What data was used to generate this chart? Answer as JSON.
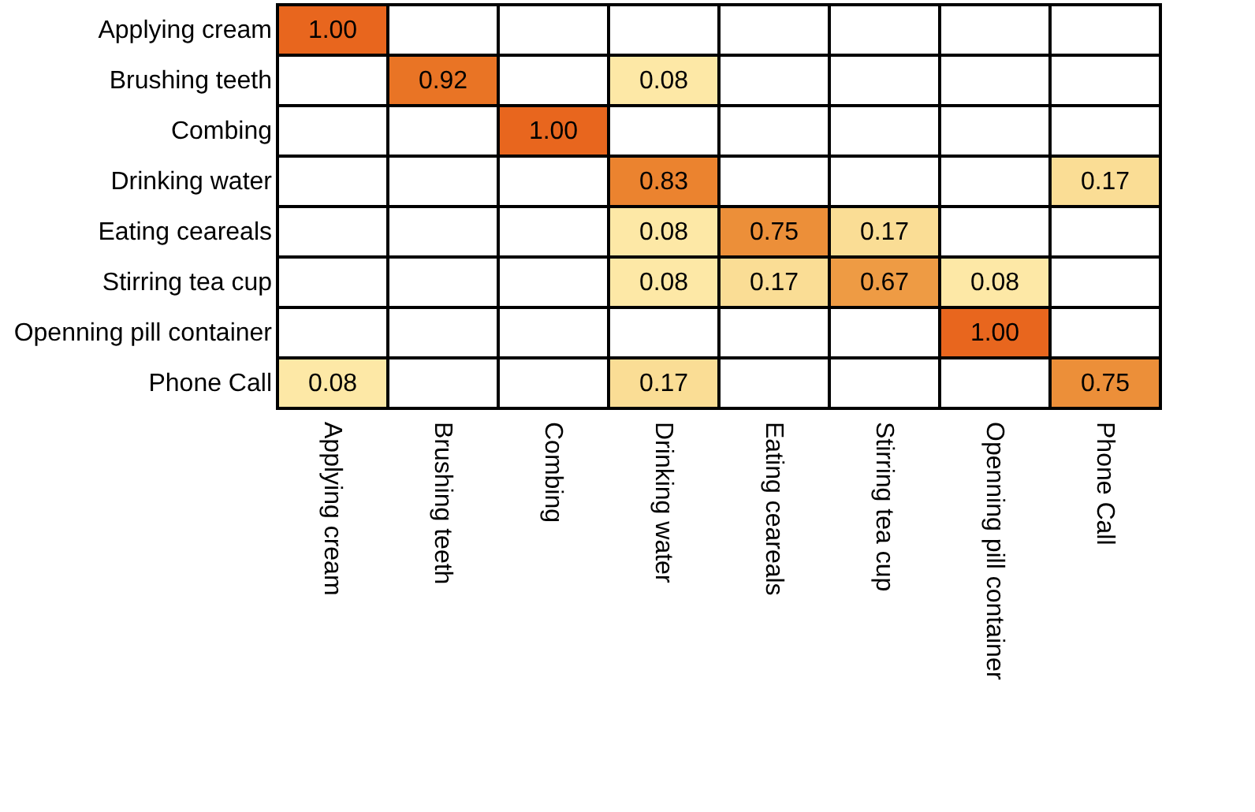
{
  "chart_data": {
    "type": "heatmap",
    "categories": [
      "Applying cream",
      "Brushing teeth",
      "Combing",
      "Drinking water",
      "Eating ceareals",
      "Stirring  tea cup",
      "Openning pill container",
      "Phone Call"
    ],
    "y_categories": [
      "Applying cream",
      "Brushing teeth",
      "Combing",
      "Drinking water",
      "Eating ceareals",
      "Stirring  tea cup",
      "Openning pill container",
      "Phone Call"
    ],
    "cells": [
      [
        1.0,
        null,
        null,
        null,
        null,
        null,
        null,
        null
      ],
      [
        null,
        0.92,
        null,
        0.08,
        null,
        null,
        null,
        null
      ],
      [
        null,
        null,
        1.0,
        null,
        null,
        null,
        null,
        null
      ],
      [
        null,
        null,
        null,
        0.83,
        null,
        null,
        null,
        0.17
      ],
      [
        null,
        null,
        null,
        0.08,
        0.75,
        0.17,
        null,
        null
      ],
      [
        null,
        null,
        null,
        0.08,
        0.17,
        0.67,
        0.08,
        null
      ],
      [
        null,
        null,
        null,
        null,
        null,
        null,
        1.0,
        null
      ],
      [
        0.08,
        null,
        null,
        0.17,
        null,
        null,
        null,
        0.75
      ]
    ],
    "cell_labels": [
      [
        "1.00",
        null,
        null,
        null,
        null,
        null,
        null,
        null
      ],
      [
        null,
        "0.92",
        null,
        "0.08",
        null,
        null,
        null,
        null
      ],
      [
        null,
        null,
        "1.00",
        null,
        null,
        null,
        null,
        null
      ],
      [
        null,
        null,
        null,
        "0.83",
        null,
        null,
        null,
        "0.17"
      ],
      [
        null,
        null,
        null,
        "0.08",
        "0.75",
        "0.17",
        null,
        null
      ],
      [
        null,
        null,
        null,
        "0.08",
        "0.17",
        "0.67",
        "0.08",
        null
      ],
      [
        null,
        null,
        null,
        null,
        null,
        null,
        "1.00",
        null
      ],
      [
        "0.08",
        null,
        null,
        "0.17",
        null,
        null,
        null,
        "0.75"
      ]
    ],
    "data_labels": true
  }
}
